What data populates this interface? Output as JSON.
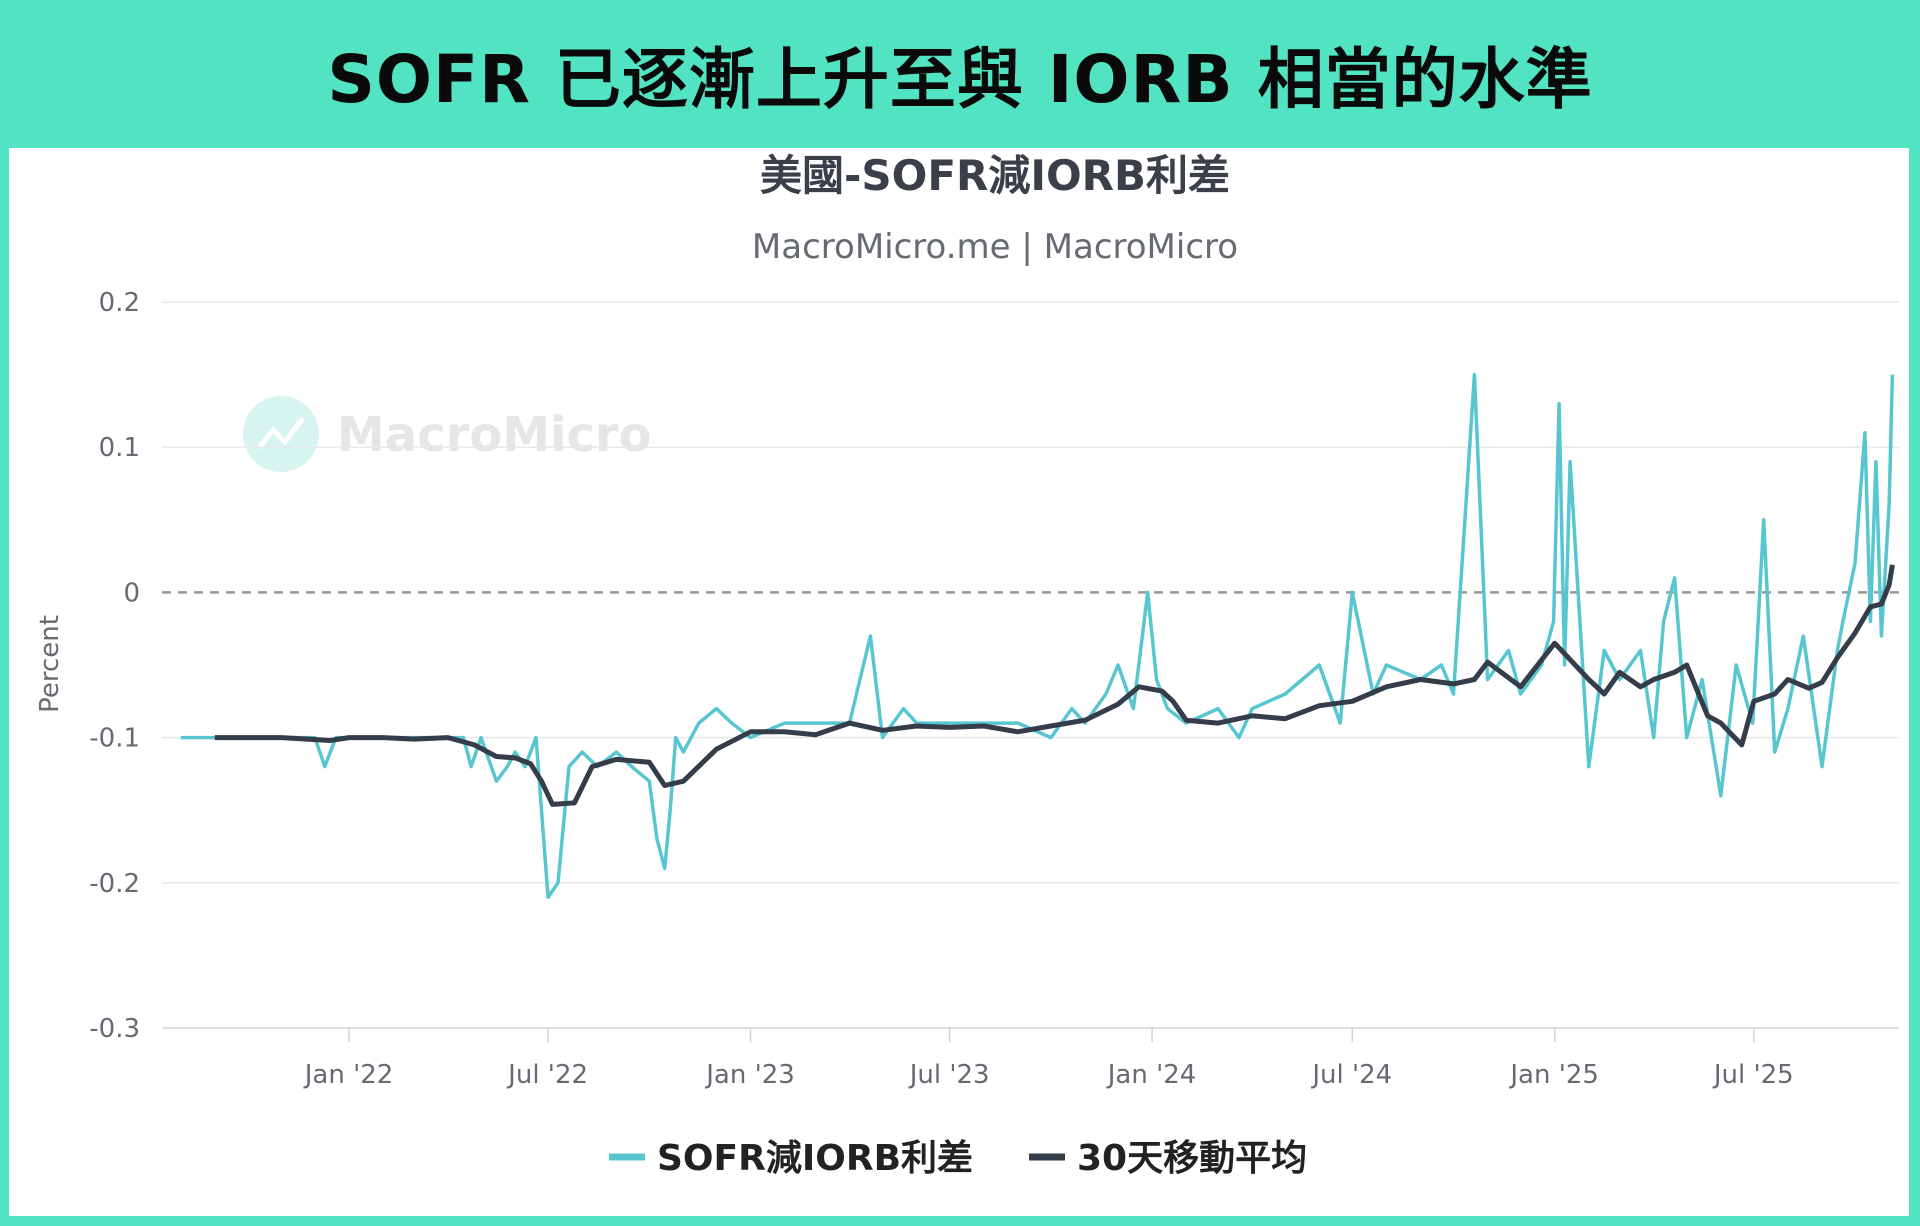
{
  "banner": {
    "title": "SOFR 已逐漸上升至與 IORB 相當的水準"
  },
  "watermark": {
    "text": "MacroMicro"
  },
  "colors": {
    "spread": "#58c6d1",
    "ma": "#353c4a",
    "frame": "#52e3c2",
    "zero_line": "#999999"
  },
  "chart_data": {
    "type": "line",
    "title": "美國-SOFR減IORB利差",
    "subtitle": "MacroMicro.me | MacroMicro",
    "xlabel": "",
    "ylabel": "Percent",
    "ylim": [
      -0.3,
      0.2
    ],
    "yticks": [
      0.2,
      0.1,
      0,
      -0.1,
      -0.2,
      -0.3
    ],
    "ytick_labels": [
      "0.2",
      "0.1",
      "0",
      "-0.1",
      "-0.2",
      "-0.3"
    ],
    "xlim": [
      "2021-07-15",
      "2025-11-10"
    ],
    "xticks": [
      {
        "label": "Jan '22",
        "date": "2022-01-01"
      },
      {
        "label": "Jul '22",
        "date": "2022-07-01"
      },
      {
        "label": "Jan '23",
        "date": "2023-01-01"
      },
      {
        "label": "Jul '23",
        "date": "2023-07-01"
      },
      {
        "label": "Jan '24",
        "date": "2024-01-01"
      },
      {
        "label": "Jul '24",
        "date": "2024-07-01"
      },
      {
        "label": "Jan '25",
        "date": "2025-01-01"
      },
      {
        "label": "Jul '25",
        "date": "2025-07-01"
      }
    ],
    "reference_line": 0,
    "grid": true,
    "legend": "bottom-center",
    "series": [
      {
        "name": "SOFR減IORB利差",
        "x": [
          "2021-08-01",
          "2021-09-01",
          "2021-10-01",
          "2021-11-01",
          "2021-12-01",
          "2021-12-10",
          "2021-12-20",
          "2022-01-15",
          "2022-02-15",
          "2022-03-15",
          "2022-04-15",
          "2022-04-22",
          "2022-05-01",
          "2022-05-15",
          "2022-05-25",
          "2022-06-01",
          "2022-06-10",
          "2022-06-20",
          "2022-06-25",
          "2022-07-01",
          "2022-07-10",
          "2022-07-20",
          "2022-08-01",
          "2022-08-15",
          "2022-09-01",
          "2022-09-15",
          "2022-10-01",
          "2022-10-08",
          "2022-10-15",
          "2022-10-20",
          "2022-10-25",
          "2022-11-01",
          "2022-11-15",
          "2022-12-01",
          "2022-12-15",
          "2023-01-01",
          "2023-02-01",
          "2023-03-01",
          "2023-04-01",
          "2023-04-20",
          "2023-05-01",
          "2023-05-20",
          "2023-06-01",
          "2023-07-01",
          "2023-08-01",
          "2023-09-01",
          "2023-10-01",
          "2023-10-20",
          "2023-11-01",
          "2023-11-20",
          "2023-12-01",
          "2023-12-15",
          "2023-12-28",
          "2024-01-05",
          "2024-01-15",
          "2024-02-01",
          "2024-03-01",
          "2024-03-20",
          "2024-04-01",
          "2024-05-01",
          "2024-06-01",
          "2024-06-20",
          "2024-07-01",
          "2024-07-20",
          "2024-08-01",
          "2024-09-01",
          "2024-09-20",
          "2024-10-01",
          "2024-10-20",
          "2024-11-01",
          "2024-11-20",
          "2024-12-01",
          "2024-12-20",
          "2024-12-31",
          "2025-01-05",
          "2025-01-10",
          "2025-01-15",
          "2025-02-01",
          "2025-02-15",
          "2025-03-01",
          "2025-03-20",
          "2025-04-01",
          "2025-04-10",
          "2025-04-20",
          "2025-05-01",
          "2025-05-15",
          "2025-06-01",
          "2025-06-15",
          "2025-06-30",
          "2025-07-10",
          "2025-07-20",
          "2025-08-01",
          "2025-08-15",
          "2025-09-01",
          "2025-09-15",
          "2025-09-20",
          "2025-10-01",
          "2025-10-10",
          "2025-10-15",
          "2025-10-20",
          "2025-10-25",
          "2025-11-01",
          "2025-11-04"
        ],
        "values": [
          -0.1,
          -0.1,
          -0.1,
          -0.1,
          -0.1,
          -0.12,
          -0.1,
          -0.1,
          -0.1,
          -0.1,
          -0.1,
          -0.12,
          -0.1,
          -0.13,
          -0.12,
          -0.11,
          -0.12,
          -0.1,
          -0.15,
          -0.21,
          -0.2,
          -0.12,
          -0.11,
          -0.12,
          -0.11,
          -0.12,
          -0.13,
          -0.17,
          -0.19,
          -0.15,
          -0.1,
          -0.11,
          -0.09,
          -0.08,
          -0.09,
          -0.1,
          -0.09,
          -0.09,
          -0.09,
          -0.03,
          -0.1,
          -0.08,
          -0.09,
          -0.09,
          -0.09,
          -0.09,
          -0.1,
          -0.08,
          -0.09,
          -0.07,
          -0.05,
          -0.08,
          0.0,
          -0.06,
          -0.08,
          -0.09,
          -0.08,
          -0.1,
          -0.08,
          -0.07,
          -0.05,
          -0.09,
          0.0,
          -0.07,
          -0.05,
          -0.06,
          -0.05,
          -0.07,
          0.15,
          -0.06,
          -0.04,
          -0.07,
          -0.05,
          -0.02,
          0.13,
          -0.05,
          0.09,
          -0.12,
          -0.04,
          -0.06,
          -0.04,
          -0.1,
          -0.02,
          0.01,
          -0.1,
          -0.06,
          -0.14,
          -0.05,
          -0.09,
          0.05,
          -0.11,
          -0.08,
          -0.03,
          -0.12,
          -0.04,
          -0.02,
          0.02,
          0.11,
          -0.02,
          0.09,
          -0.03,
          0.06,
          0.15
        ]
      },
      {
        "name": "30天移動平均",
        "x": [
          "2021-09-01",
          "2021-11-01",
          "2021-12-15",
          "2022-01-01",
          "2022-02-01",
          "2022-03-01",
          "2022-04-01",
          "2022-04-25",
          "2022-05-15",
          "2022-06-01",
          "2022-06-15",
          "2022-06-25",
          "2022-07-05",
          "2022-07-25",
          "2022-08-10",
          "2022-09-01",
          "2022-10-01",
          "2022-10-15",
          "2022-11-01",
          "2022-12-01",
          "2023-01-01",
          "2023-02-01",
          "2023-03-01",
          "2023-04-01",
          "2023-05-01",
          "2023-06-01",
          "2023-07-01",
          "2023-08-01",
          "2023-09-01",
          "2023-10-01",
          "2023-11-01",
          "2023-12-01",
          "2023-12-20",
          "2024-01-10",
          "2024-01-20",
          "2024-02-01",
          "2024-03-01",
          "2024-04-01",
          "2024-05-01",
          "2024-06-01",
          "2024-07-01",
          "2024-08-01",
          "2024-09-01",
          "2024-10-01",
          "2024-10-20",
          "2024-11-01",
          "2024-12-01",
          "2025-01-01",
          "2025-02-01",
          "2025-02-15",
          "2025-03-01",
          "2025-03-20",
          "2025-04-01",
          "2025-04-20",
          "2025-05-01",
          "2025-05-20",
          "2025-06-01",
          "2025-06-20",
          "2025-07-01",
          "2025-07-20",
          "2025-08-01",
          "2025-08-20",
          "2025-09-01",
          "2025-09-15",
          "2025-10-01",
          "2025-10-15",
          "2025-10-25",
          "2025-11-01",
          "2025-11-04"
        ],
        "values": [
          -0.1,
          -0.1,
          -0.102,
          -0.1,
          -0.1,
          -0.101,
          -0.1,
          -0.105,
          -0.113,
          -0.114,
          -0.118,
          -0.13,
          -0.146,
          -0.145,
          -0.12,
          -0.115,
          -0.117,
          -0.133,
          -0.13,
          -0.108,
          -0.096,
          -0.096,
          -0.098,
          -0.09,
          -0.095,
          -0.092,
          -0.093,
          -0.092,
          -0.096,
          -0.092,
          -0.088,
          -0.077,
          -0.065,
          -0.068,
          -0.075,
          -0.088,
          -0.09,
          -0.085,
          -0.087,
          -0.078,
          -0.075,
          -0.065,
          -0.06,
          -0.063,
          -0.06,
          -0.048,
          -0.065,
          -0.035,
          -0.06,
          -0.07,
          -0.055,
          -0.065,
          -0.06,
          -0.055,
          -0.05,
          -0.085,
          -0.09,
          -0.105,
          -0.075,
          -0.07,
          -0.06,
          -0.066,
          -0.062,
          -0.045,
          -0.028,
          -0.01,
          -0.008,
          0.005,
          0.019
        ]
      }
    ]
  }
}
